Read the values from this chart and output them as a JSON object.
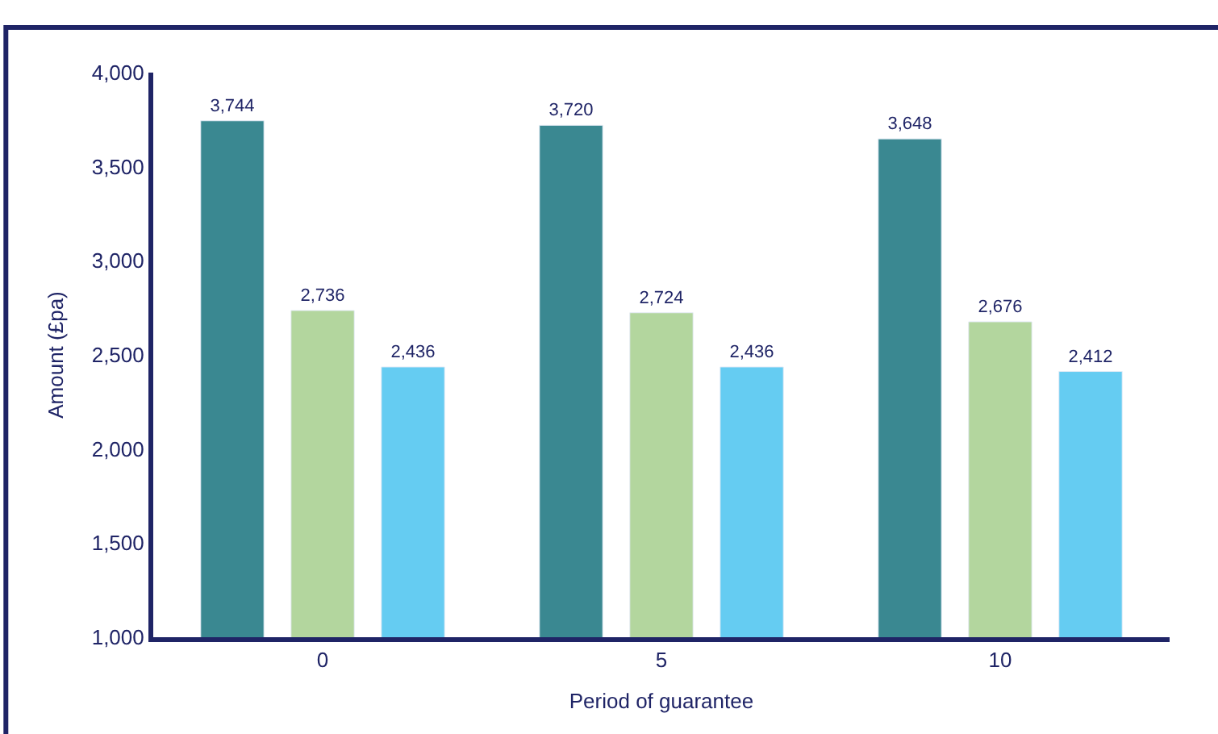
{
  "chart_data": {
    "type": "bar",
    "xlabel": "Period of guarantee",
    "ylabel": "Amount (£pa)",
    "categories": [
      "0",
      "5",
      "10"
    ],
    "series": [
      {
        "color": "#3a8891",
        "values": [
          3744,
          3720,
          3648
        ],
        "value_labels": [
          "3,744",
          "3,720",
          "3,648"
        ]
      },
      {
        "color": "#b3d69e",
        "values": [
          2736,
          2724,
          2676
        ],
        "value_labels": [
          "2,736",
          "2,724",
          "2,676"
        ]
      },
      {
        "color": "#65ccf2",
        "values": [
          2436,
          2436,
          2412
        ],
        "value_labels": [
          "2,436",
          "2,436",
          "2,412"
        ]
      }
    ],
    "ylim": [
      1000,
      4000
    ],
    "yticks": [
      {
        "value": 1000,
        "label": "1,000"
      },
      {
        "value": 1500,
        "label": "1,500"
      },
      {
        "value": 2000,
        "label": "2,000"
      },
      {
        "value": 2500,
        "label": "2,500"
      },
      {
        "value": 3000,
        "label": "3,000"
      },
      {
        "value": 3500,
        "label": "3,500"
      },
      {
        "value": 4000,
        "label": "4,000"
      }
    ]
  }
}
